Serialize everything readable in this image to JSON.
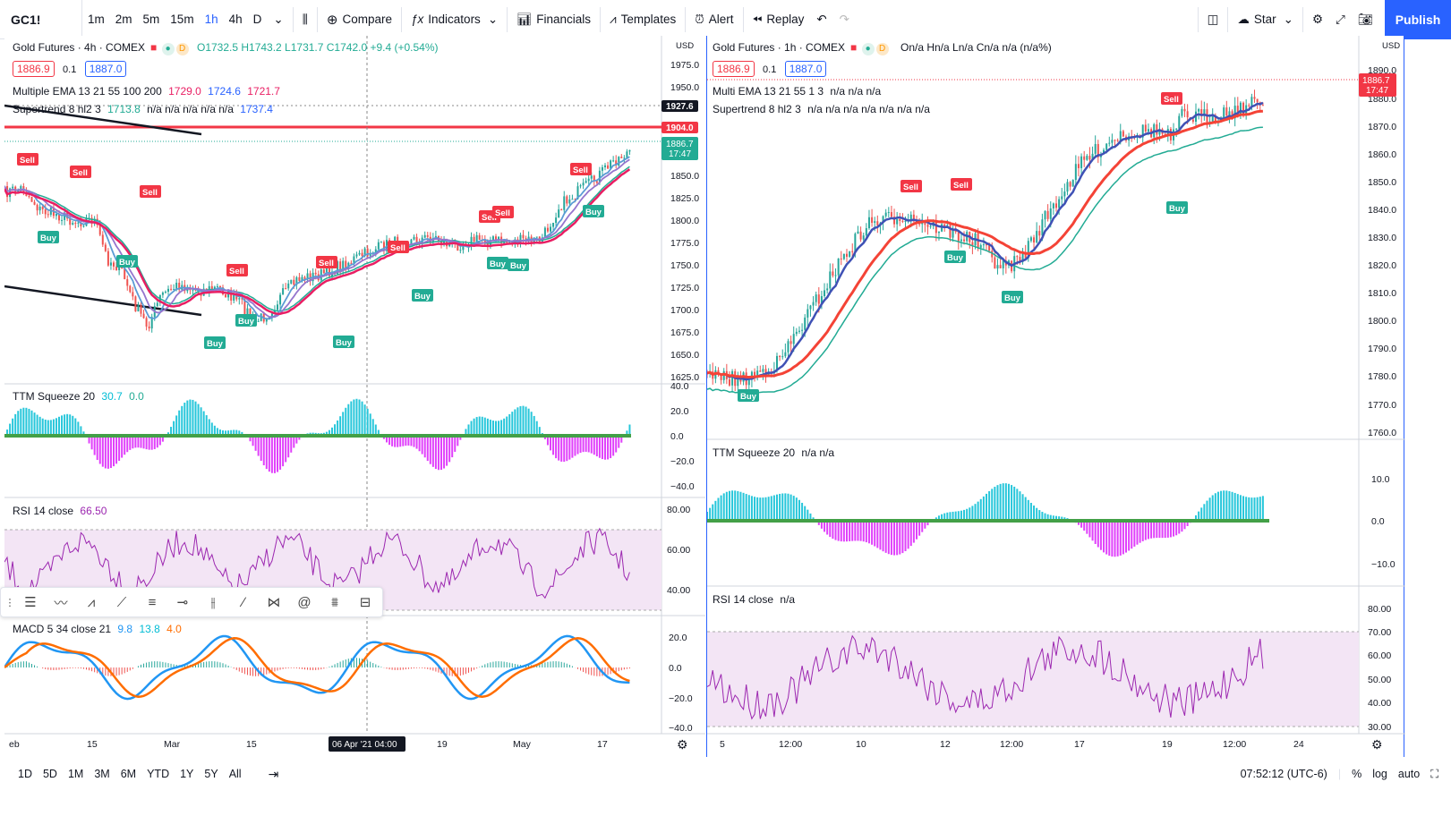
{
  "toolbar": {
    "symbol": "GC1!",
    "timeframes": [
      "1m",
      "2m",
      "5m",
      "15m",
      "1h",
      "4h",
      "D"
    ],
    "active_timeframe": "1h",
    "compare": "Compare",
    "indicators": "Indicators",
    "financials": "Financials",
    "templates": "Templates",
    "alert": "Alert",
    "replay": "Replay",
    "star": "Star",
    "publish": "Publish"
  },
  "left": {
    "title": "Gold Futures · 4h · COMEX",
    "ohlc": "O1732.5 H1743.2 L1731.7 C1742.0 +9.4 (+0.54%)",
    "sell": "1886.9",
    "spread": "0.1",
    "buy": "1887.0",
    "ema_label": "Multiple EMA 13 21 55 100 200",
    "ema_v1": "1729.0",
    "ema_v2": "1724.6",
    "ema_v3": "1721.7",
    "st_label": "Supertrend 8 hl2 3",
    "st_v1": "1713.8",
    "st_vals": "n/a n/a n/a n/a n/a",
    "st_v2": "1737.4",
    "ttm_label": "TTM Squeeze 20",
    "ttm_v1": "30.7",
    "ttm_v2": "0.0",
    "rsi_label": "RSI 14 close",
    "rsi_v": "66.50",
    "macd_label": "MACD 5 34 close 21",
    "macd_v1": "9.8",
    "macd_v2": "13.8",
    "macd_v3": "4.0",
    "price_axis": [
      "1975.0",
      "1950.0",
      "1904.0",
      "1850.0",
      "1825.0",
      "1800.0",
      "1775.0",
      "1750.0",
      "1725.0",
      "1700.0",
      "1675.0",
      "1650.0",
      "1625.0"
    ],
    "price_tag_cross": "1927.6",
    "price_tag_line": "1904.0",
    "price_tag_last": "1886.7",
    "price_tag_time": "17:47",
    "ttm_axis": [
      "40.0",
      "20.0",
      "0.0",
      "−20.0",
      "−40.0"
    ],
    "rsi_axis": [
      "80.00",
      "60.00",
      "40.00"
    ],
    "macd_axis": [
      "20.0",
      "0.0",
      "−20.0",
      "−40.0"
    ],
    "time_axis": [
      "eb",
      "15",
      "Mar",
      "15",
      "19",
      "May",
      "17"
    ],
    "time_cursor": "06 Apr '21  04:00",
    "currency": "USD"
  },
  "right": {
    "title": "Gold Futures · 1h · COMEX",
    "ohlc": "On/a Hn/a Ln/a Cn/a n/a (n/a%)",
    "sell": "1886.9",
    "spread": "0.1",
    "buy": "1887.0",
    "ema_label": "Multi EMA 13 21 55 1 3",
    "ema_vals": "n/a n/a n/a",
    "st_label": "Supertrend 8 hl2 3",
    "st_vals": "n/a n/a n/a n/a n/a n/a n/a",
    "ttm_label": "TTM Squeeze 20",
    "ttm_vals": "n/a n/a",
    "rsi_label": "RSI 14 close",
    "rsi_vals": "n/a",
    "price_axis": [
      "1890.0",
      "1880.0",
      "1870.0",
      "1860.0",
      "1850.0",
      "1840.0",
      "1830.0",
      "1820.0",
      "1810.0",
      "1800.0",
      "1790.0",
      "1780.0",
      "1770.0",
      "1760.0"
    ],
    "price_tag_last": "1886.7",
    "price_tag_time": "17:47",
    "ttm_axis": [
      "10.0",
      "0.0",
      "−10.0"
    ],
    "rsi_axis": [
      "80.00",
      "70.00",
      "60.00",
      "50.00",
      "40.00",
      "30.00"
    ],
    "time_axis": [
      "5",
      "12:00",
      "10",
      "12",
      "12:00",
      "17",
      "19",
      "12:00",
      "24"
    ],
    "currency": "USD"
  },
  "bottom": {
    "ranges": [
      "1D",
      "5D",
      "1M",
      "3M",
      "6M",
      "YTD",
      "1Y",
      "5Y",
      "All"
    ],
    "clock": "07:52:12 (UTC-6)",
    "pct": "%",
    "log": "log",
    "auto": "auto"
  },
  "signals": {
    "sell": "Sell",
    "buy": "Buy"
  },
  "colors": {
    "accent": "#2962ff",
    "sell": "#f23645",
    "buy": "#22ab94",
    "ema_fast": "#5b5bd6",
    "ema_slow": "#f23645",
    "rsi": "#9c27b0",
    "macd": "#2196f3",
    "signal": "#ff6d00",
    "ttm_pos": "#00bcd4",
    "ttm_neg": "#e040fb"
  }
}
